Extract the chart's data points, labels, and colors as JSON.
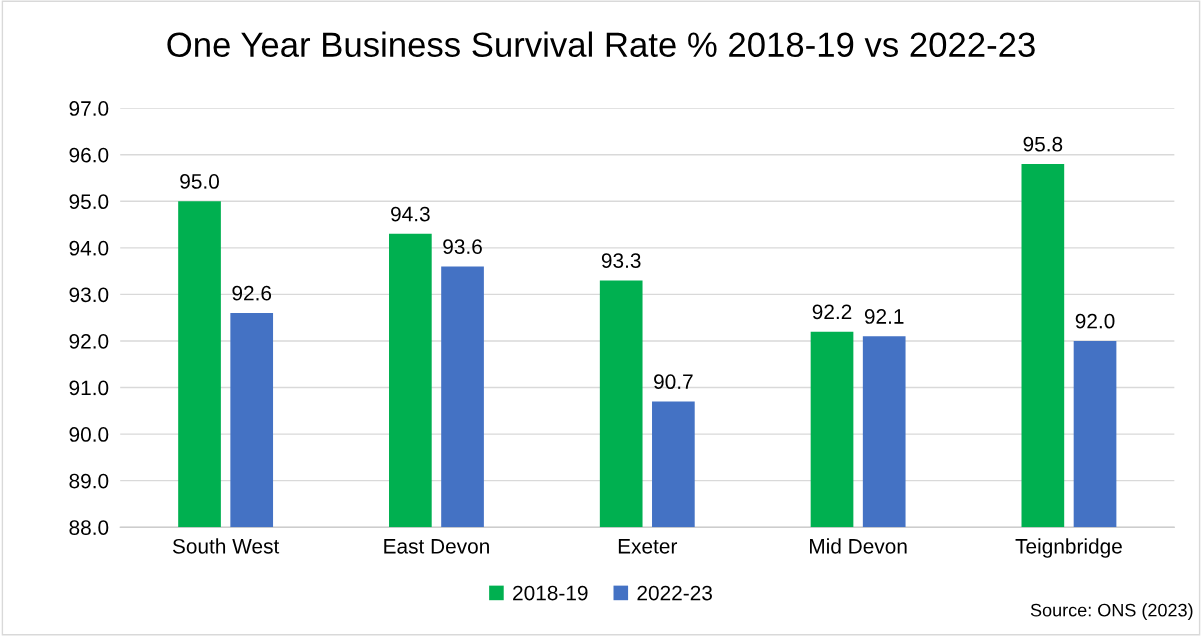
{
  "chart_data": {
    "type": "bar",
    "title": "One Year Business Survival Rate % 2018-19 vs 2022-23",
    "categories": [
      "South West",
      "East Devon",
      "Exeter",
      "Mid Devon",
      "Teignbridge"
    ],
    "series": [
      {
        "name": "2018-19",
        "color": "#00b050",
        "values": [
          95.0,
          94.3,
          93.3,
          92.2,
          95.8
        ],
        "value_labels": [
          "95.0",
          "94.3",
          "93.3",
          "92.2",
          "95.8"
        ]
      },
      {
        "name": "2022-23",
        "color": "#4472c4",
        "values": [
          92.6,
          93.6,
          90.7,
          92.1,
          92.0
        ],
        "value_labels": [
          "92.6",
          "93.6",
          "90.7",
          "92.1",
          "92.0"
        ]
      }
    ],
    "ylim": [
      88,
      97
    ],
    "yticks": [
      {
        "value": 88,
        "label": "88.0"
      },
      {
        "value": 89,
        "label": "89.0"
      },
      {
        "value": 90,
        "label": "90.0"
      },
      {
        "value": 91,
        "label": "91.0"
      },
      {
        "value": 92,
        "label": "92.0"
      },
      {
        "value": 93,
        "label": "93.0"
      },
      {
        "value": 94,
        "label": "94.0"
      },
      {
        "value": 95,
        "label": "95.0"
      },
      {
        "value": 96,
        "label": "96.0"
      },
      {
        "value": 97,
        "label": "97.0"
      }
    ],
    "grid": "y",
    "legend": "bottom",
    "annotations": [
      "Source: ONS (2023)"
    ]
  }
}
